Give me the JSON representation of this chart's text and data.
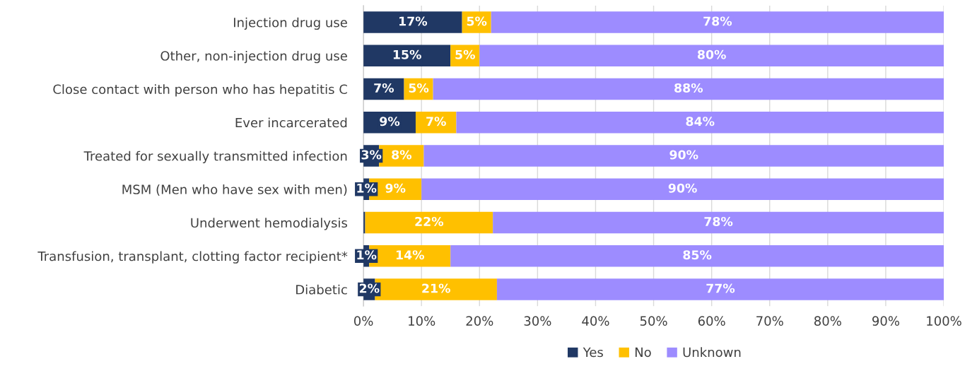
{
  "chart_data": {
    "type": "bar",
    "orientation": "horizontal",
    "stacked": true,
    "categories": [
      "Injection drug use",
      "Other, non-injection drug use",
      "Close contact with person who has hepatitis C",
      "Ever incarcerated",
      "Treated for sexually transmitted infection",
      "MSM (Men who have sex with men)",
      "Underwent hemodialysis",
      "Transfusion, transplant, clotting factor recipient*",
      "Diabetic"
    ],
    "series": [
      {
        "name": "Yes",
        "color": "#203864",
        "values": [
          17,
          15,
          7,
          9,
          2.7,
          1,
          0.3,
          1,
          2
        ],
        "value_labels": [
          "17%",
          "15%",
          "7%",
          "9%",
          "3%",
          "1%",
          null,
          "1%",
          "2%"
        ]
      },
      {
        "name": "No",
        "color": "#ffc000",
        "values": [
          5,
          5,
          5,
          7,
          7.7,
          9,
          22,
          14,
          21
        ],
        "value_labels": [
          "5%",
          "5%",
          "5%",
          "7%",
          "8%",
          "9%",
          "22%",
          "14%",
          "21%"
        ]
      },
      {
        "name": "Unknown",
        "color": "#9d8cff",
        "values": [
          78,
          80,
          88,
          84,
          89.6,
          90,
          77.7,
          85,
          77
        ],
        "value_labels": [
          "78%",
          "80%",
          "88%",
          "84%",
          "90%",
          "90%",
          "78%",
          "85%",
          "77%"
        ]
      }
    ],
    "xlim": [
      0,
      100
    ],
    "xticks": [
      {
        "value": 0,
        "label": "0%"
      },
      {
        "value": 10,
        "label": "10%"
      },
      {
        "value": 20,
        "label": "20%"
      },
      {
        "value": 30,
        "label": "30%"
      },
      {
        "value": 40,
        "label": "40%"
      },
      {
        "value": 50,
        "label": "50%"
      },
      {
        "value": 60,
        "label": "60%"
      },
      {
        "value": 70,
        "label": "70%"
      },
      {
        "value": 80,
        "label": "80%"
      },
      {
        "value": 90,
        "label": "90%"
      },
      {
        "value": 100,
        "label": "100%"
      }
    ],
    "grid": "x",
    "legend": "bottom"
  }
}
